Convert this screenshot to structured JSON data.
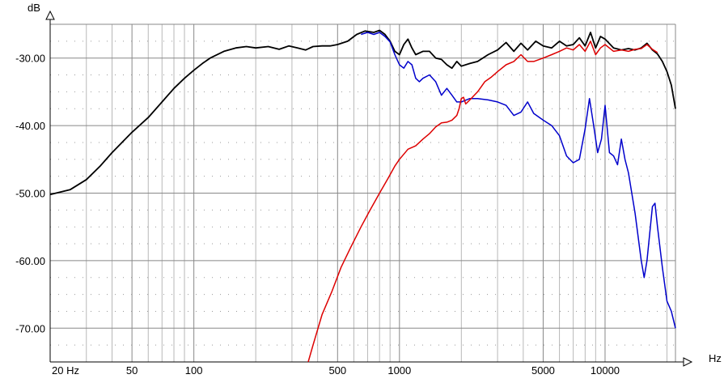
{
  "chart_data": {
    "type": "line",
    "title": "",
    "xlabel": "Hz",
    "ylabel": "dB",
    "xscale": "log",
    "xlim": [
      20,
      22000
    ],
    "ylim": [
      -75,
      -25
    ],
    "grid": true,
    "x_tick_labels": [
      {
        "value": 20,
        "label": "20 Hz"
      },
      {
        "value": 50,
        "label": "50"
      },
      {
        "value": 100,
        "label": "100"
      },
      {
        "value": 500,
        "label": "500"
      },
      {
        "value": 1000,
        "label": "1000"
      },
      {
        "value": 5000,
        "label": "5000"
      },
      {
        "value": 10000,
        "label": "10000"
      }
    ],
    "y_tick_labels": [
      {
        "value": -30,
        "label": "-30.00"
      },
      {
        "value": -40,
        "label": "-40.00"
      },
      {
        "value": -50,
        "label": "-50.00"
      },
      {
        "value": -60,
        "label": "-60.00"
      },
      {
        "value": -70,
        "label": "-70.00"
      }
    ],
    "series": [
      {
        "color": "#000000",
        "points": [
          [
            20,
            -50.2
          ],
          [
            25,
            -49.5
          ],
          [
            30,
            -48.0
          ],
          [
            35,
            -46.0
          ],
          [
            40,
            -44.0
          ],
          [
            50,
            -41.0
          ],
          [
            60,
            -38.8
          ],
          [
            70,
            -36.5
          ],
          [
            80,
            -34.5
          ],
          [
            90,
            -33.0
          ],
          [
            100,
            -31.8
          ],
          [
            110,
            -30.8
          ],
          [
            120,
            -30.0
          ],
          [
            140,
            -29.0
          ],
          [
            160,
            -28.5
          ],
          [
            180,
            -28.3
          ],
          [
            200,
            -28.5
          ],
          [
            230,
            -28.3
          ],
          [
            260,
            -28.7
          ],
          [
            290,
            -28.2
          ],
          [
            320,
            -28.5
          ],
          [
            350,
            -28.8
          ],
          [
            380,
            -28.3
          ],
          [
            420,
            -28.2
          ],
          [
            460,
            -28.2
          ],
          [
            500,
            -28.0
          ],
          [
            560,
            -27.5
          ],
          [
            620,
            -26.5
          ],
          [
            680,
            -26.0
          ],
          [
            750,
            -26.2
          ],
          [
            800,
            -25.9
          ],
          [
            850,
            -26.5
          ],
          [
            900,
            -27.5
          ],
          [
            950,
            -29.0
          ],
          [
            1000,
            -29.5
          ],
          [
            1050,
            -28.0
          ],
          [
            1100,
            -27.2
          ],
          [
            1150,
            -28.5
          ],
          [
            1200,
            -29.5
          ],
          [
            1300,
            -29.0
          ],
          [
            1400,
            -29.0
          ],
          [
            1500,
            -30.0
          ],
          [
            1600,
            -30.2
          ],
          [
            1700,
            -31.0
          ],
          [
            1800,
            -31.5
          ],
          [
            1900,
            -30.5
          ],
          [
            2000,
            -31.2
          ],
          [
            2200,
            -30.8
          ],
          [
            2400,
            -30.5
          ],
          [
            2700,
            -29.5
          ],
          [
            3000,
            -28.8
          ],
          [
            3300,
            -27.7
          ],
          [
            3600,
            -29.0
          ],
          [
            3900,
            -27.8
          ],
          [
            4200,
            -28.8
          ],
          [
            4600,
            -27.5
          ],
          [
            5000,
            -28.2
          ],
          [
            5500,
            -28.5
          ],
          [
            6000,
            -27.5
          ],
          [
            6500,
            -28.2
          ],
          [
            7000,
            -28.0
          ],
          [
            7500,
            -27.0
          ],
          [
            8000,
            -28.2
          ],
          [
            8500,
            -26.2
          ],
          [
            9000,
            -28.5
          ],
          [
            9500,
            -26.8
          ],
          [
            10000,
            -27.2
          ],
          [
            11000,
            -28.5
          ],
          [
            12000,
            -28.8
          ],
          [
            13000,
            -28.6
          ],
          [
            14000,
            -28.8
          ],
          [
            15000,
            -28.5
          ],
          [
            16000,
            -27.8
          ],
          [
            17000,
            -28.8
          ],
          [
            18000,
            -29.4
          ],
          [
            19000,
            -30.5
          ],
          [
            20000,
            -32.0
          ],
          [
            21000,
            -34.0
          ],
          [
            22000,
            -37.5
          ]
        ]
      },
      {
        "color": "#0000cc",
        "points": [
          [
            650,
            -26.5
          ],
          [
            700,
            -26.2
          ],
          [
            750,
            -26.5
          ],
          [
            800,
            -26.2
          ],
          [
            850,
            -26.8
          ],
          [
            900,
            -27.6
          ],
          [
            950,
            -29.5
          ],
          [
            1000,
            -31.0
          ],
          [
            1050,
            -31.5
          ],
          [
            1100,
            -30.5
          ],
          [
            1150,
            -31.0
          ],
          [
            1200,
            -33.0
          ],
          [
            1250,
            -33.5
          ],
          [
            1300,
            -33.0
          ],
          [
            1400,
            -32.5
          ],
          [
            1500,
            -33.5
          ],
          [
            1600,
            -35.5
          ],
          [
            1700,
            -34.5
          ],
          [
            1800,
            -35.5
          ],
          [
            1900,
            -36.5
          ],
          [
            2000,
            -36.5
          ],
          [
            2200,
            -36.0
          ],
          [
            2400,
            -36.0
          ],
          [
            2700,
            -36.2
          ],
          [
            3000,
            -36.5
          ],
          [
            3300,
            -37.0
          ],
          [
            3600,
            -38.5
          ],
          [
            3900,
            -38.0
          ],
          [
            4200,
            -36.5
          ],
          [
            4500,
            -38.2
          ],
          [
            5000,
            -39.2
          ],
          [
            5500,
            -40.0
          ],
          [
            6000,
            -41.5
          ],
          [
            6500,
            -44.5
          ],
          [
            7000,
            -45.5
          ],
          [
            7500,
            -45.0
          ],
          [
            8000,
            -40.5
          ],
          [
            8400,
            -36.0
          ],
          [
            8800,
            -40.0
          ],
          [
            9200,
            -44.0
          ],
          [
            9600,
            -42.0
          ],
          [
            10000,
            -37.0
          ],
          [
            10500,
            -44.0
          ],
          [
            11000,
            -44.5
          ],
          [
            11500,
            -45.8
          ],
          [
            12000,
            -42.0
          ],
          [
            12500,
            -45.0
          ],
          [
            13000,
            -47.0
          ],
          [
            14000,
            -53.0
          ],
          [
            15000,
            -60.0
          ],
          [
            15500,
            -62.5
          ],
          [
            16000,
            -60.0
          ],
          [
            17000,
            -52.0
          ],
          [
            17500,
            -51.5
          ],
          [
            18000,
            -55.0
          ],
          [
            19000,
            -61.0
          ],
          [
            20000,
            -66.0
          ],
          [
            21000,
            -67.5
          ],
          [
            22000,
            -70.0
          ]
        ]
      },
      {
        "color": "#dd0000",
        "points": [
          [
            360,
            -75.0
          ],
          [
            380,
            -72.5
          ],
          [
            420,
            -68.0
          ],
          [
            470,
            -64.5
          ],
          [
            520,
            -61.0
          ],
          [
            580,
            -58.0
          ],
          [
            650,
            -55.0
          ],
          [
            720,
            -52.5
          ],
          [
            800,
            -50.0
          ],
          [
            880,
            -47.8
          ],
          [
            950,
            -46.0
          ],
          [
            1000,
            -45.0
          ],
          [
            1100,
            -43.5
          ],
          [
            1200,
            -43.0
          ],
          [
            1300,
            -42.0
          ],
          [
            1400,
            -41.2
          ],
          [
            1500,
            -40.2
          ],
          [
            1600,
            -39.6
          ],
          [
            1700,
            -39.5
          ],
          [
            1800,
            -39.2
          ],
          [
            1900,
            -38.5
          ],
          [
            1950,
            -37.5
          ],
          [
            2000,
            -36.0
          ],
          [
            2050,
            -35.8
          ],
          [
            2100,
            -36.8
          ],
          [
            2200,
            -36.2
          ],
          [
            2400,
            -35.0
          ],
          [
            2600,
            -33.5
          ],
          [
            2800,
            -32.8
          ],
          [
            3000,
            -32.0
          ],
          [
            3300,
            -31.0
          ],
          [
            3600,
            -30.5
          ],
          [
            3900,
            -29.5
          ],
          [
            4200,
            -30.5
          ],
          [
            4500,
            -30.5
          ],
          [
            5000,
            -30.0
          ],
          [
            5500,
            -29.5
          ],
          [
            6000,
            -29.0
          ],
          [
            6500,
            -28.5
          ],
          [
            7000,
            -28.8
          ],
          [
            7500,
            -28.0
          ],
          [
            8000,
            -29.0
          ],
          [
            8500,
            -27.5
          ],
          [
            9000,
            -29.5
          ],
          [
            9500,
            -28.5
          ],
          [
            10000,
            -28.0
          ],
          [
            11000,
            -29.0
          ],
          [
            12000,
            -28.8
          ],
          [
            13000,
            -29.0
          ],
          [
            14000,
            -28.7
          ],
          [
            15000,
            -28.6
          ],
          [
            16000,
            -28.0
          ],
          [
            17000,
            -28.7
          ],
          [
            18000,
            -29.2
          ]
        ]
      }
    ]
  }
}
